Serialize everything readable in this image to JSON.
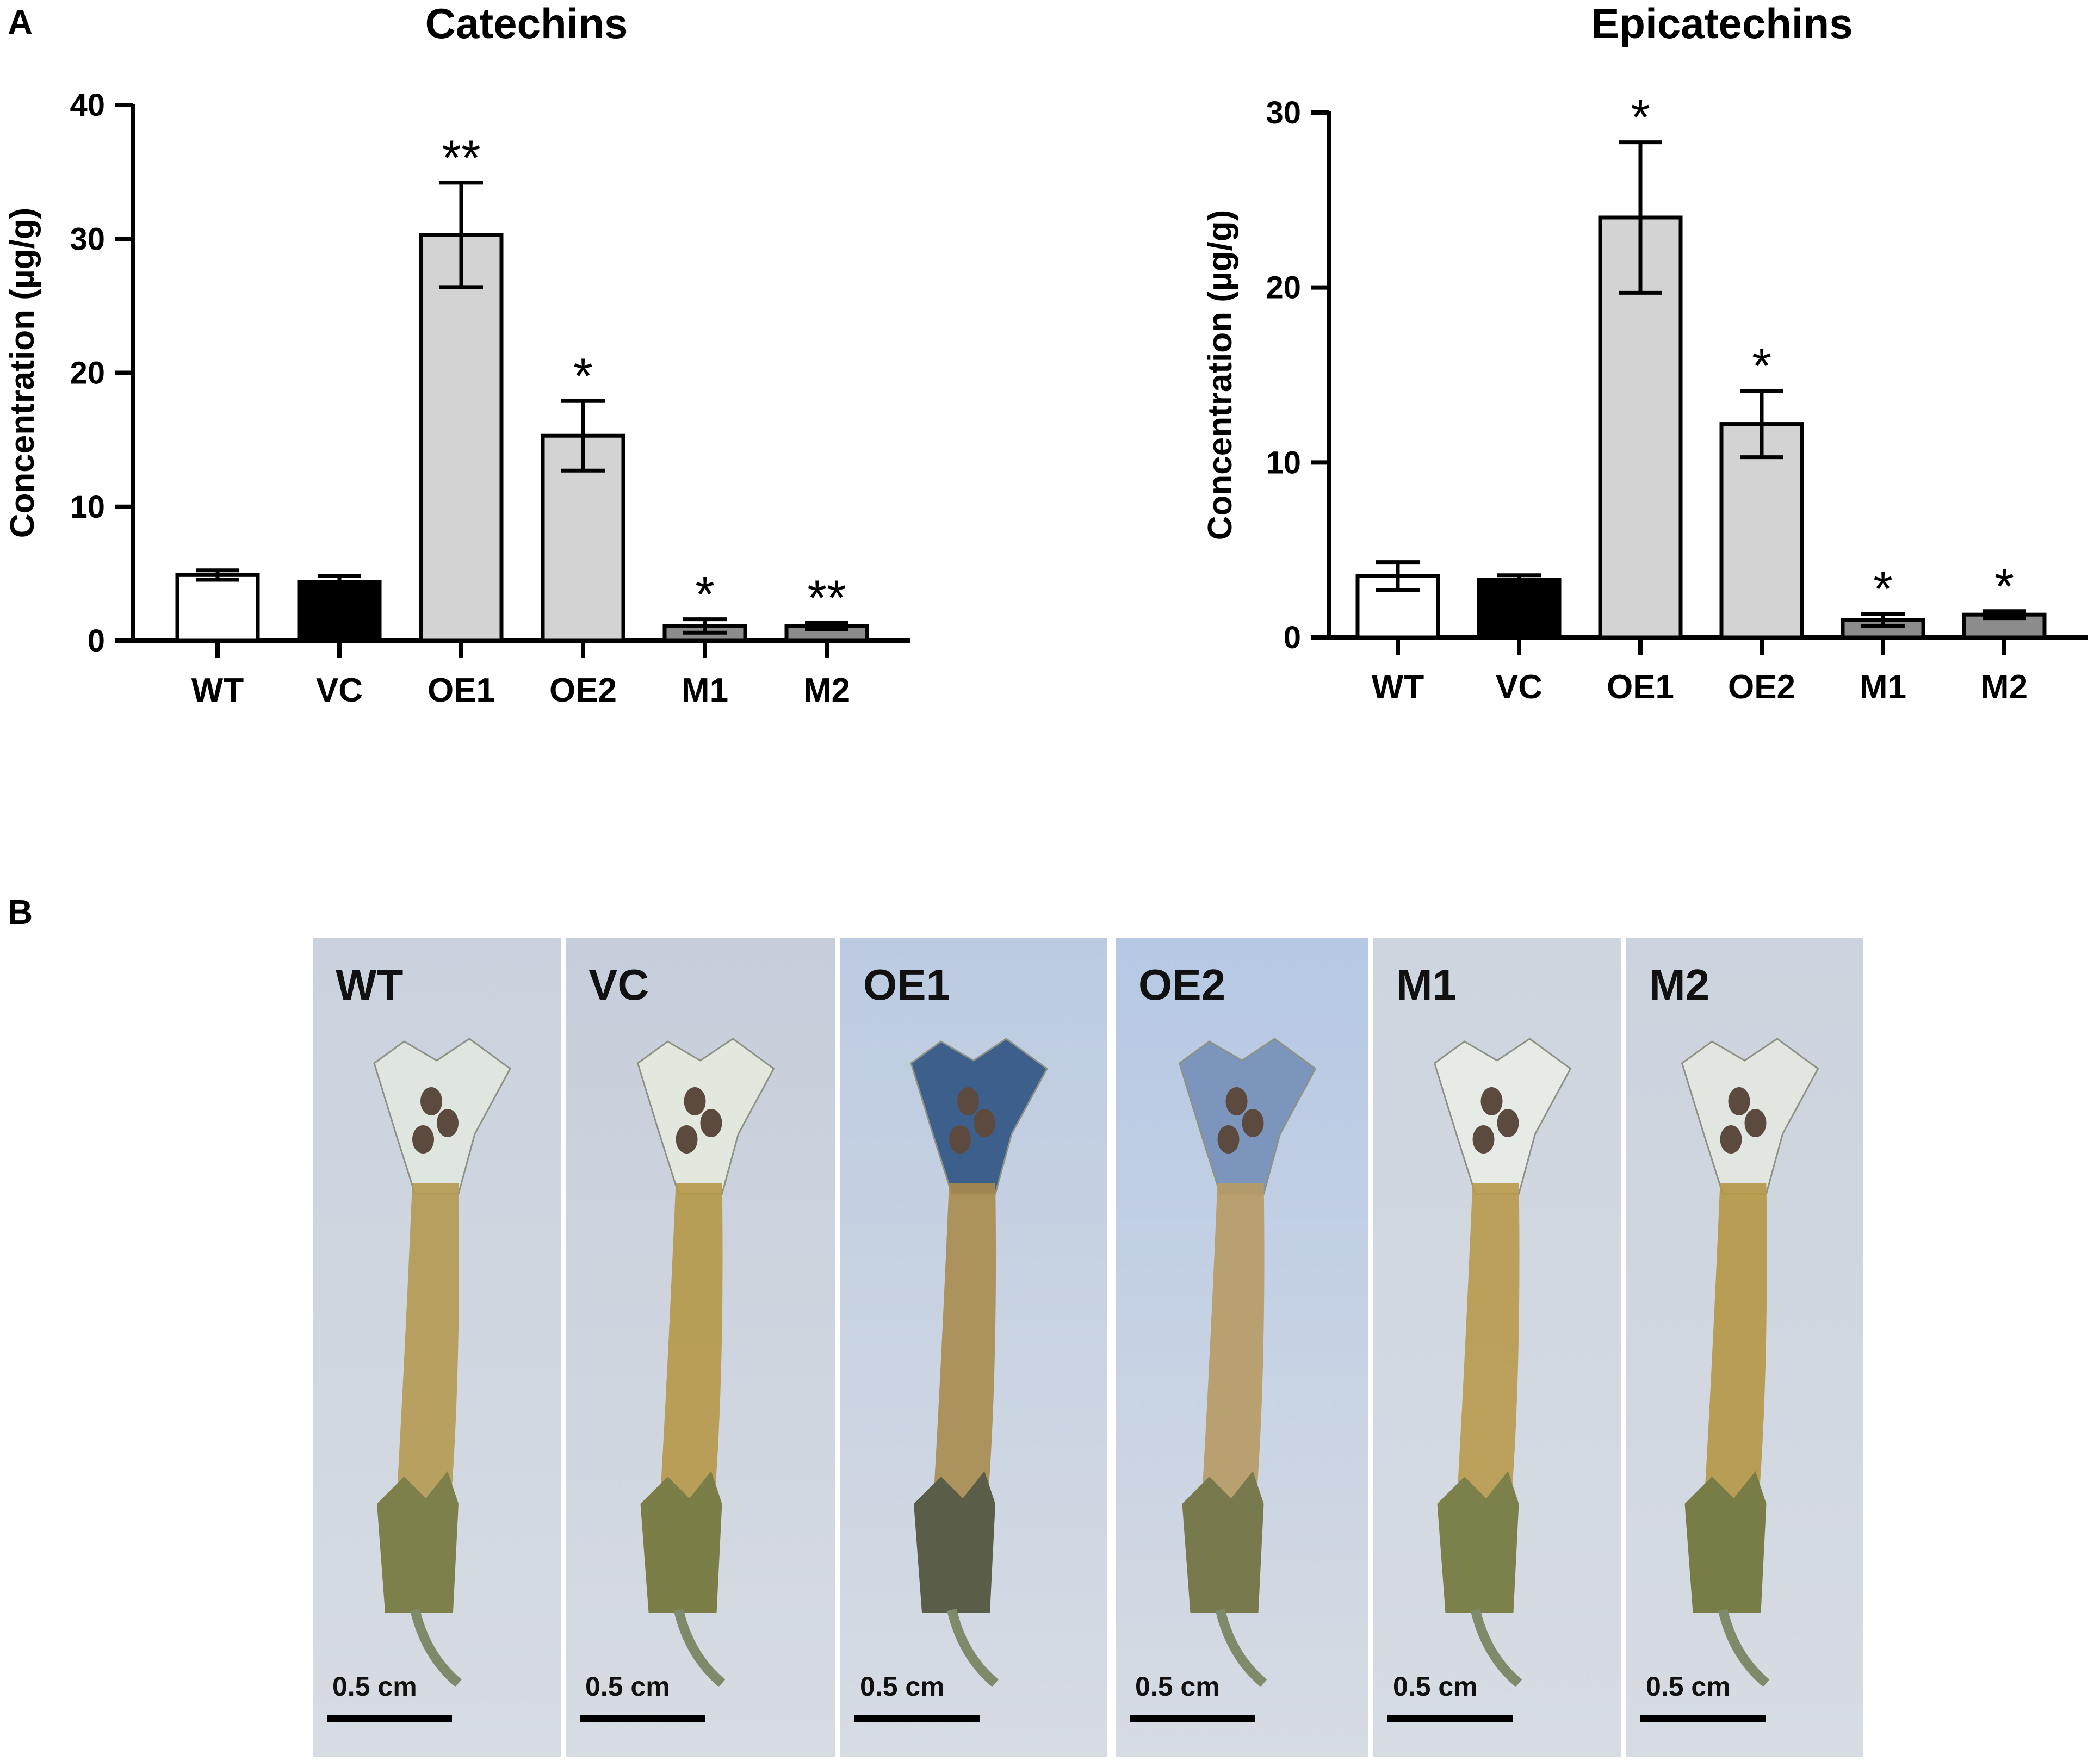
{
  "panel_labels": {
    "a": "A",
    "b": "B"
  },
  "colors": {
    "axis": "#000000",
    "bar_wt": "#ffffff",
    "bar_vc": "#000000",
    "bar_oe": "#d3d3d3",
    "bar_m": "#8c8c8c"
  },
  "chart_data": [
    {
      "type": "bar",
      "title": "Catechins",
      "xlabel": "",
      "ylabel": "Concentration (µg/g)",
      "ylim": [
        0,
        40
      ],
      "yticks": [
        0,
        10,
        20,
        30,
        40
      ],
      "categories": [
        "WT",
        "VC",
        "OE1",
        "OE2",
        "M1",
        "M2"
      ],
      "values": [
        4.9,
        4.4,
        30.3,
        15.3,
        1.1,
        1.1
      ],
      "errors": [
        0.35,
        0.45,
        3.9,
        2.6,
        0.5,
        0.25
      ],
      "significance": [
        "",
        "",
        "**",
        "*",
        "*",
        "**"
      ],
      "bar_fill_keys": [
        "bar_wt",
        "bar_vc",
        "bar_oe",
        "bar_oe",
        "bar_m",
        "bar_m"
      ]
    },
    {
      "type": "bar",
      "title": "Epicatechins",
      "xlabel": "",
      "ylabel": "Concentration (µg/g)",
      "ylim": [
        0,
        30
      ],
      "yticks": [
        0,
        10,
        20,
        30
      ],
      "categories": [
        "WT",
        "VC",
        "OE1",
        "OE2",
        "M1",
        "M2"
      ],
      "values": [
        3.5,
        3.3,
        24.0,
        12.2,
        1.0,
        1.3
      ],
      "errors": [
        0.8,
        0.25,
        4.3,
        1.9,
        0.35,
        0.2
      ],
      "significance": [
        "",
        "",
        "*",
        "*",
        "*",
        "*"
      ],
      "bar_fill_keys": [
        "bar_wt",
        "bar_vc",
        "bar_oe",
        "bar_oe",
        "bar_m",
        "bar_m"
      ]
    }
  ],
  "photos": {
    "scale_label": "0.5 cm",
    "tiles": [
      {
        "label": "WT",
        "bg": "#c9d2de",
        "limb": "#dfe6e0",
        "tube": "#b49a52",
        "calyx": "#7d804a"
      },
      {
        "label": "VC",
        "bg": "#c6cedb",
        "limb": "#e3e8df",
        "tube": "#b59848",
        "calyx": "#7b7f47"
      },
      {
        "label": "OE1",
        "bg": "#bccbe2",
        "limb": "#3c5f8c",
        "tube": "#a88b4d",
        "calyx": "#5a5e48"
      },
      {
        "label": "OE2",
        "bg": "#b6c8e4",
        "limb": "#7c95bd",
        "tube": "#b79a63",
        "calyx": "#787a4e"
      },
      {
        "label": "M1",
        "bg": "#cdd5df",
        "limb": "#e6ebe5",
        "tube": "#b89a4d",
        "calyx": "#7c804a"
      },
      {
        "label": "M2",
        "bg": "#cbd3de",
        "limb": "#e1e7e0",
        "tube": "#b59746",
        "calyx": "#787c46"
      }
    ]
  }
}
